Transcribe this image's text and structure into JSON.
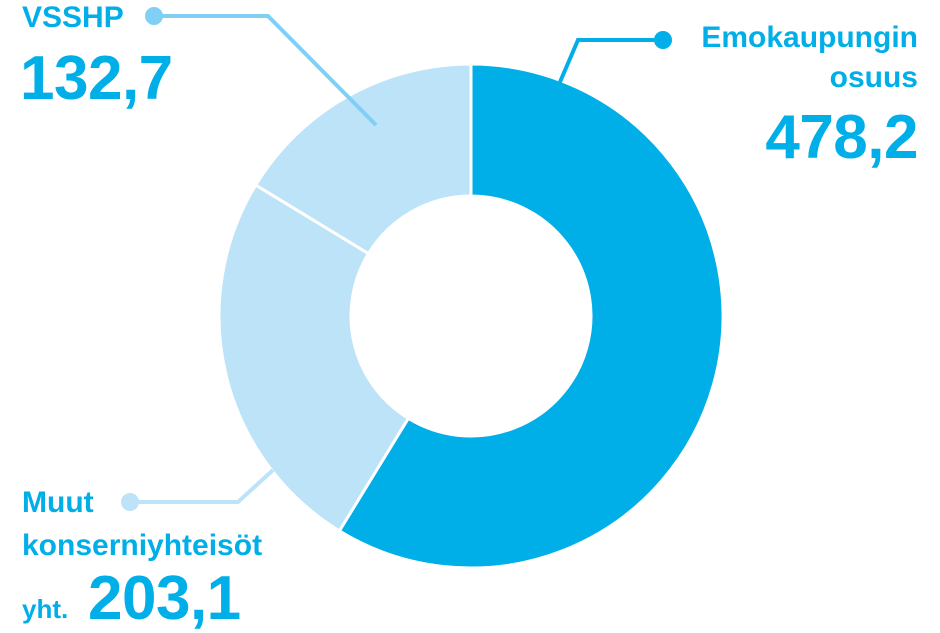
{
  "chart_data": {
    "type": "pie",
    "variant": "donut",
    "slices": [
      {
        "label_lines": [
          "Emokaupungin",
          "osuus"
        ],
        "value": 478.2,
        "value_label": "478,2",
        "color": "#00aee8"
      },
      {
        "label_lines": [
          "Muut",
          "konserniyhteisöt"
        ],
        "prefix": "yht.",
        "value": 203.1,
        "value_label": "203,1",
        "color": "#bde3f8"
      },
      {
        "label_lines": [
          "VSSHP"
        ],
        "value": 132.7,
        "value_label": "132,7",
        "color": "#bde3f8"
      }
    ],
    "label_color": "#00aee8",
    "leader_color": "#7fd0f4",
    "grid": false
  }
}
